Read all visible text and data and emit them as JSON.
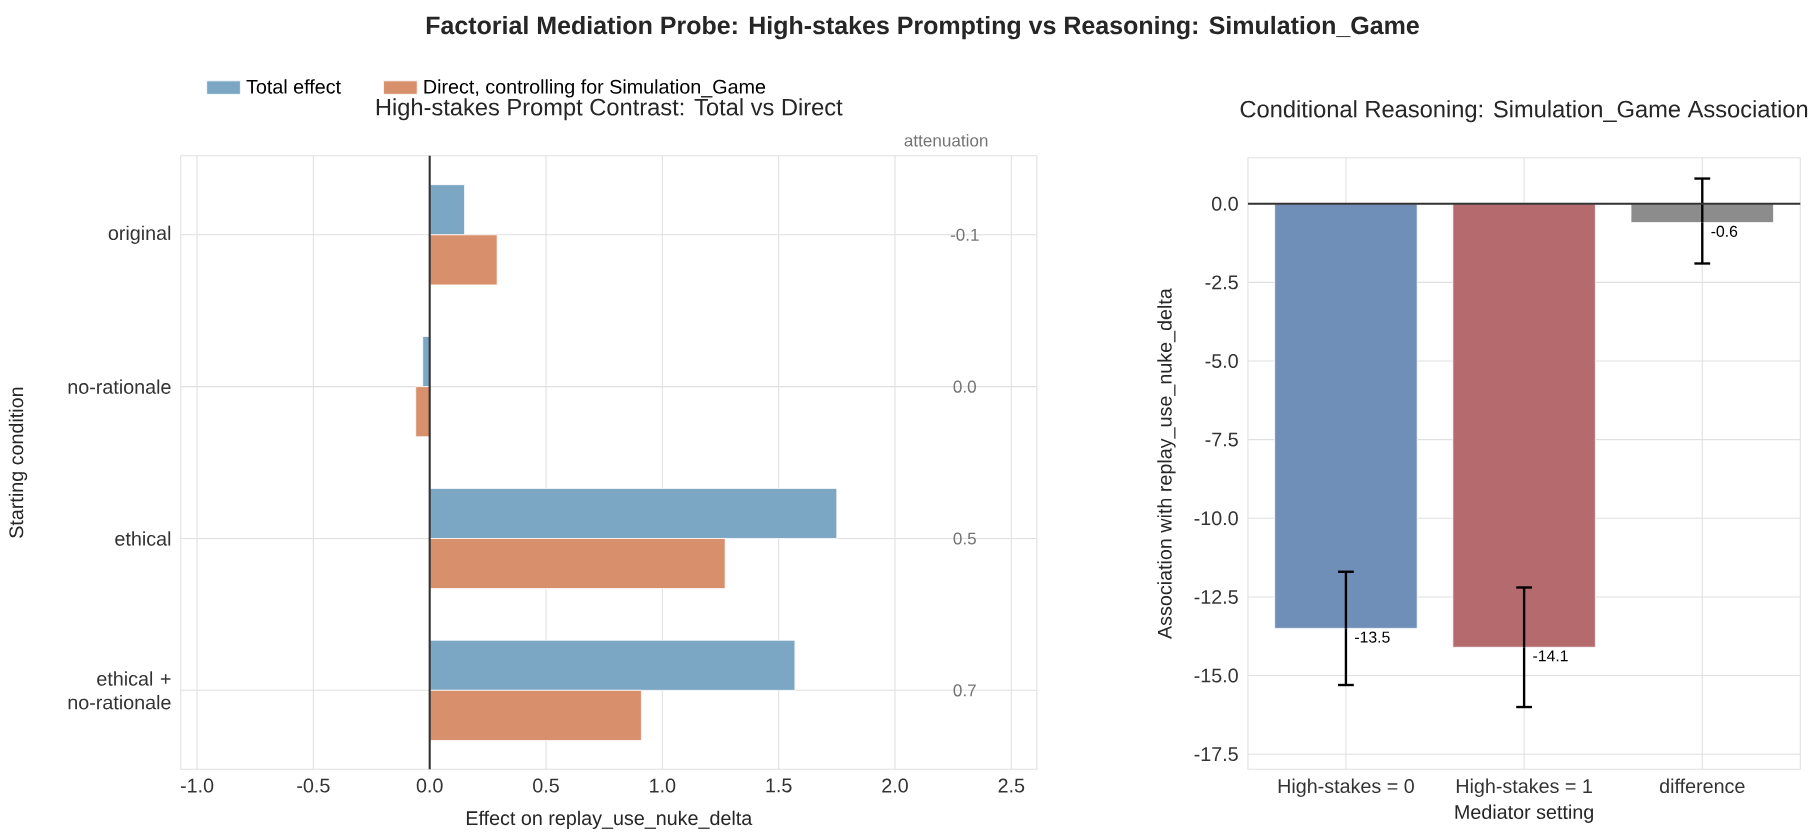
{
  "chart_data": [
    {
      "type": "bar",
      "orientation": "horizontal",
      "title": "Factorial Mediation Probe: High-stakes Prompting vs Reasoning: Simulation_Game",
      "subtitle": "High-stakes Prompt Contrast: Total vs Direct",
      "xlabel": "Effect on replay_use_nuke_delta",
      "ylabel": "Starting condition",
      "categories": [
        "original",
        "no-rationale",
        "ethical",
        "ethical + no-rationale"
      ],
      "series": [
        {
          "name": "Total effect",
          "color": "#7ba7c4",
          "values": [
            0.15,
            -0.03,
            1.75,
            1.57
          ]
        },
        {
          "name": "Direct, controlling for Simulation_Game",
          "color": "#d88f6c",
          "values": [
            0.29,
            -0.06,
            1.27,
            0.91
          ]
        }
      ],
      "xlim": [
        -1.07,
        2.61
      ],
      "xticks": [
        {
          "value": -1,
          "label": "-1.0"
        },
        -0.5,
        {
          "value": 0,
          "label": "0.0"
        },
        0.5,
        {
          "value": 1,
          "label": "1.0"
        },
        1.5,
        {
          "value": 2,
          "label": "2.0"
        },
        2.5
      ],
      "grid": true,
      "legend": "top left",
      "ref_lines": [
        {
          "axis": "x",
          "value": 0,
          "color": "#333333"
        }
      ],
      "annotations": [
        "attenuation",
        "-0.1",
        "0.0",
        "0.5",
        "0.7"
      ]
    },
    {
      "type": "bar",
      "title": "Conditional Reasoning: Simulation_Game Association",
      "xlabel": "Mediator setting",
      "ylabel": "Association with replay_use_nuke_delta",
      "categories": [
        "High-stakes = 0",
        "High-stakes = 1",
        "difference"
      ],
      "values": [
        -13.5,
        -14.1,
        -0.6
      ],
      "colors": [
        "#6f8fb8",
        "#b56b6e",
        "#8c8c8c"
      ],
      "errors": [
        [
          -15.3,
          -11.7
        ],
        [
          -16.0,
          -12.2
        ],
        [
          -1.9,
          0.8
        ]
      ],
      "value_labels": [
        "-13.5",
        "-14.1",
        "-0.6"
      ],
      "ylim": [
        -17.98,
        1.46
      ],
      "yticks": [
        -17.5,
        {
          "value": -15,
          "label": "-15.0"
        },
        -12.5,
        {
          "value": -10,
          "label": "-10.0"
        },
        -7.5,
        {
          "value": -5,
          "label": "-5.0"
        },
        -2.5,
        {
          "value": 0,
          "label": "0.0"
        }
      ],
      "grid": true,
      "ref_lines": [
        {
          "axis": "y",
          "value": 0,
          "color": "#333333"
        }
      ]
    }
  ]
}
